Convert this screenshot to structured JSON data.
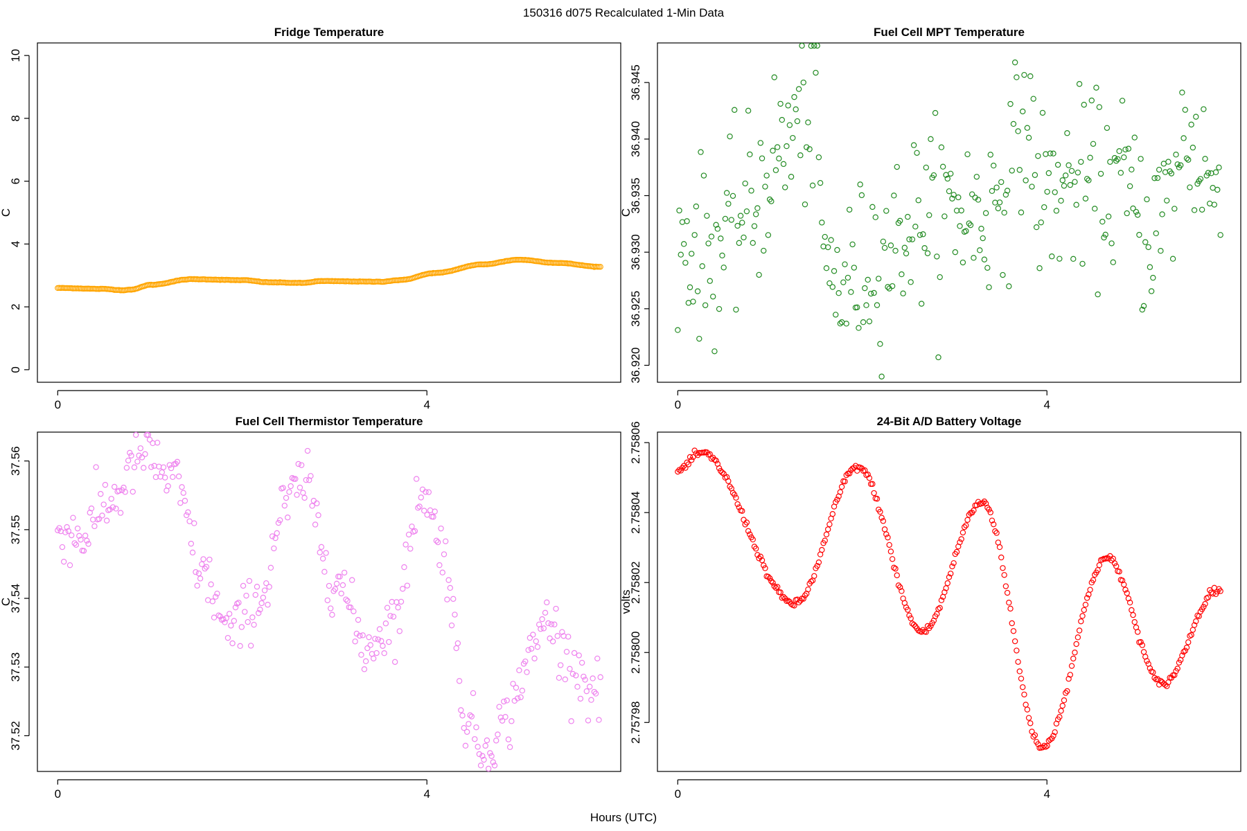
{
  "figure": {
    "title": "150316   d075   Recalculated 1-Min Data",
    "xlabel": "Hours (UTC)"
  },
  "chart_data": [
    {
      "id": "fridge",
      "type": "scatter",
      "title": "Fridge Temperature",
      "ylabel": "C",
      "color": "#ffa500",
      "xlim": [
        -0.22,
        6.1
      ],
      "ylim": [
        -0.4,
        10.4
      ],
      "xticks": [
        0,
        4
      ],
      "xtick_labels": [
        "0",
        "4"
      ],
      "yticks": [
        0,
        2,
        4,
        6,
        8,
        10
      ],
      "ytick_labels": [
        "0",
        "2",
        "4",
        "6",
        "8",
        "10"
      ],
      "npoints": 355,
      "pattern": "fridge",
      "key_points": [
        [
          0,
          2.6
        ],
        [
          0.5,
          2.57
        ],
        [
          0.7,
          2.53
        ],
        [
          0.8,
          2.55
        ],
        [
          1.0,
          2.7
        ],
        [
          1.45,
          2.88
        ],
        [
          2.0,
          2.85
        ],
        [
          2.3,
          2.78
        ],
        [
          2.65,
          2.76
        ],
        [
          2.85,
          2.82
        ],
        [
          3.5,
          2.8
        ],
        [
          3.7,
          2.85
        ],
        [
          4.1,
          3.08
        ],
        [
          4.6,
          3.35
        ],
        [
          5.0,
          3.5
        ],
        [
          5.4,
          3.4
        ],
        [
          5.9,
          3.27
        ]
      ]
    },
    {
      "id": "mpt",
      "type": "scatter",
      "title": "Fuel Cell MPT Temperature",
      "ylabel": "C",
      "color": "#228b22",
      "xlim": [
        -0.22,
        6.1
      ],
      "ylim": [
        36.9185,
        36.9485
      ],
      "xticks": [
        0,
        4
      ],
      "xtick_labels": [
        "0",
        "4"
      ],
      "yticks": [
        36.92,
        36.925,
        36.93,
        36.935,
        36.94,
        36.945
      ],
      "ytick_labels": [
        "36.920",
        "36.925",
        "36.930",
        "36.935",
        "36.940",
        "36.945"
      ],
      "npoints": 355,
      "pattern": "mpt",
      "key_points": [
        [
          0,
          36.931
        ],
        [
          0.4,
          36.93
        ],
        [
          0.8,
          36.934
        ],
        [
          1.1,
          36.939
        ],
        [
          1.4,
          36.942
        ],
        [
          1.5,
          36.942
        ],
        [
          1.6,
          36.928
        ],
        [
          1.8,
          36.927
        ],
        [
          2.2,
          36.93
        ],
        [
          2.6,
          36.933
        ],
        [
          3.0,
          36.934
        ],
        [
          3.3,
          36.933
        ],
        [
          3.6,
          36.937
        ],
        [
          3.75,
          36.942
        ],
        [
          3.95,
          36.935
        ],
        [
          4.3,
          36.936
        ],
        [
          4.8,
          36.936
        ],
        [
          5.1,
          36.932
        ],
        [
          5.3,
          36.934
        ],
        [
          5.5,
          36.94
        ],
        [
          5.7,
          36.938
        ],
        [
          5.85,
          36.934
        ]
      ]
    },
    {
      "id": "thermistor",
      "type": "scatter",
      "title": "Fuel Cell Thermistor Temperature",
      "ylabel": "C",
      "color": "#ee82ee",
      "xlim": [
        -0.22,
        6.1
      ],
      "ylim": [
        37.5148,
        37.5642
      ],
      "xticks": [
        0,
        4
      ],
      "xtick_labels": [
        "0",
        "4"
      ],
      "yticks": [
        37.52,
        37.53,
        37.54,
        37.55,
        37.56
      ],
      "ytick_labels": [
        "37.52",
        "37.53",
        "37.54",
        "37.55",
        "37.56"
      ],
      "npoints": 355,
      "pattern": "thermistor",
      "key_points": [
        [
          0,
          37.55
        ],
        [
          0.25,
          37.549
        ],
        [
          0.55,
          37.554
        ],
        [
          0.95,
          37.561
        ],
        [
          1.25,
          37.557
        ],
        [
          1.6,
          37.543
        ],
        [
          1.85,
          37.535
        ],
        [
          2.2,
          37.54
        ],
        [
          2.45,
          37.553
        ],
        [
          2.65,
          37.557
        ],
        [
          3.0,
          37.543
        ],
        [
          3.35,
          37.533
        ],
        [
          3.65,
          37.537
        ],
        [
          3.95,
          37.556
        ],
        [
          4.15,
          37.548
        ],
        [
          4.45,
          37.522
        ],
        [
          4.6,
          37.518
        ],
        [
          4.85,
          37.522
        ],
        [
          5.1,
          37.531
        ],
        [
          5.3,
          37.537
        ],
        [
          5.55,
          37.531
        ],
        [
          5.85,
          37.526
        ]
      ]
    },
    {
      "id": "battery",
      "type": "scatter",
      "title": "24-Bit A/D Battery Voltage",
      "ylabel": "volts",
      "color": "#ff0000",
      "xlim": [
        -0.22,
        6.1
      ],
      "ylim": [
        2.757966,
        2.758063
      ],
      "xticks": [
        0,
        4
      ],
      "xtick_labels": [
        "0",
        "4"
      ],
      "yticks": [
        2.75798,
        2.758,
        2.75802,
        2.75804,
        2.75806
      ],
      "ytick_labels": [
        "2.75798",
        "2.75800",
        "2.75802",
        "2.75804",
        "2.75806"
      ],
      "npoints": 355,
      "pattern": "battery",
      "key_points": [
        [
          0,
          2.758052
        ],
        [
          0.25,
          2.758057
        ],
        [
          1.27,
          2.758014
        ],
        [
          1.95,
          2.758053
        ],
        [
          2.65,
          2.758006
        ],
        [
          3.3,
          2.758043
        ],
        [
          3.95,
          2.757973
        ],
        [
          4.65,
          2.758027
        ],
        [
          5.25,
          2.757991
        ],
        [
          5.85,
          2.758018
        ]
      ]
    }
  ]
}
